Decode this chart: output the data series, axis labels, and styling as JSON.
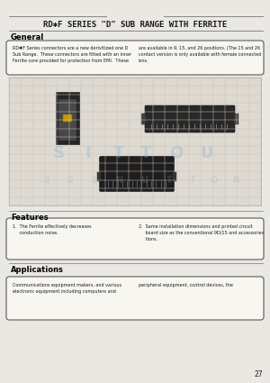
{
  "bg_color": "#eae8e2",
  "title": "RD✱F SERIES \"D\" SUB RANGE WITH FERRITE",
  "section_general": "General",
  "general_text": "RD✱F Series connectors are a new derivitized one D Sub Range.  These connectors are fitted with an inner\nFerrite core provided for protection from EMI.  These        are available in 9, 15, and 26 positions. (The 15 and 26\n                                                             contact version is only available with female connected ions.",
  "section_features": "Features",
  "features_text": "1.  The Ferrite effectively decreases conduction noise.          2.  Same installation dimensions and printed circuit\n                                                              board size as the conventional 9D/15 and accessories\n                                                              tions.",
  "section_applications": "Applications",
  "applications_text": "Communications equipment makers, and various        peripheral equipment, control devices, the\nelectronic equipment including computers and",
  "page_number": "27",
  "line_color": "#777777",
  "box_edge_color": "#444444",
  "text_color": "#1a1a1a",
  "label_color": "#000000",
  "grid_color": "#c8c4bc",
  "grid_bg": "#dedad2"
}
